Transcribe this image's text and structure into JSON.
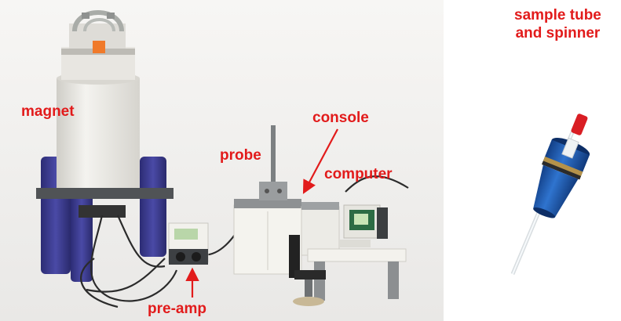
{
  "labels": {
    "magnet": "magnet",
    "console": "console",
    "probe": "probe",
    "computer": "computer",
    "preamp": "pre-amp",
    "sample_line1": "sample tube",
    "sample_line2": "and spinner"
  },
  "colors": {
    "label": "#e21b1b",
    "magnet_body": "#ebe9e4",
    "magnet_legs": "#3a3a8c",
    "lego_gray": "#9a9d9f",
    "spinner_blue": "#1f5fb8"
  }
}
